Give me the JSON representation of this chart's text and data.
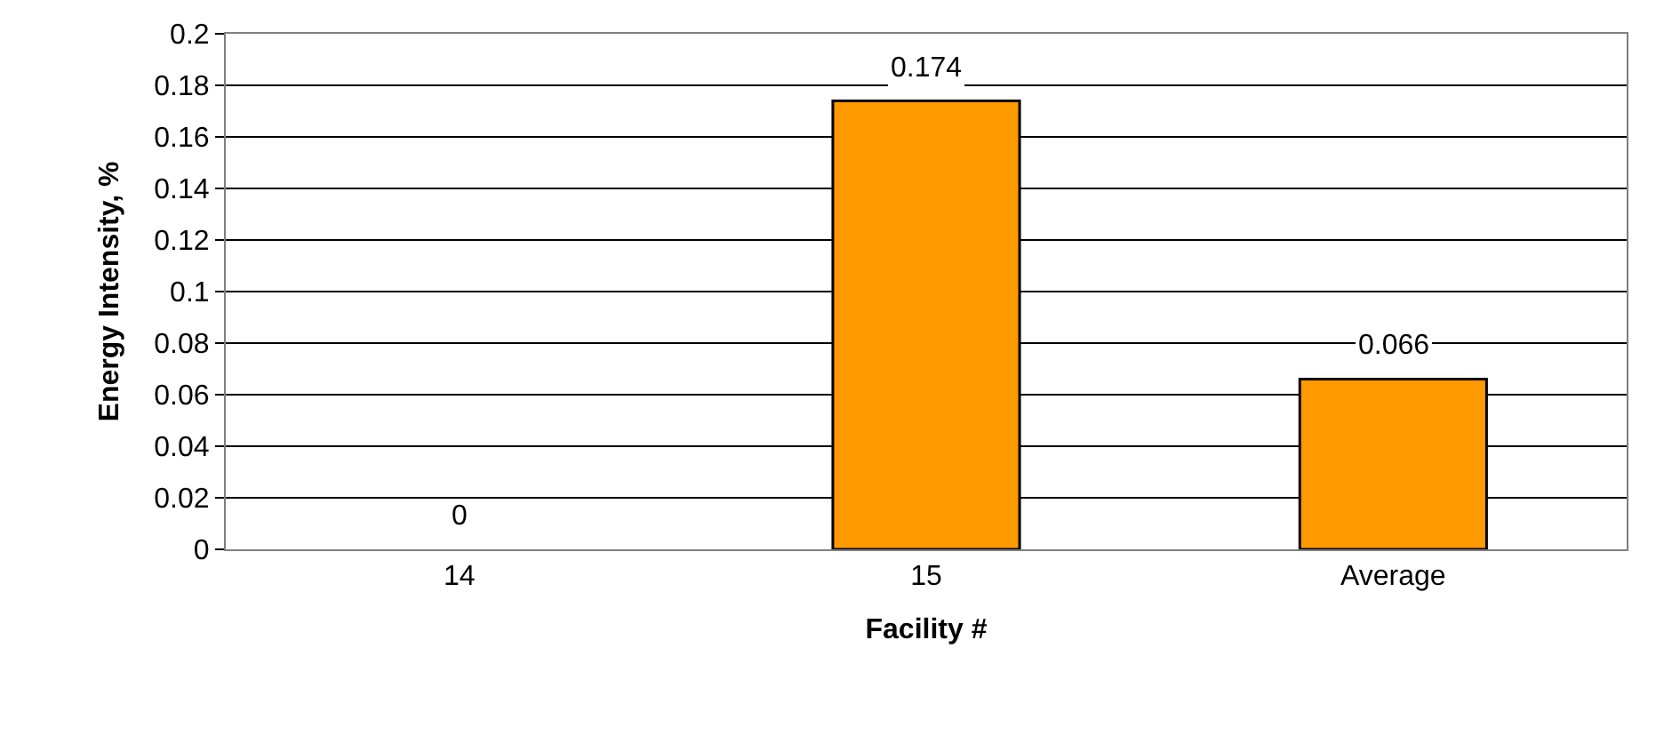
{
  "chart_data": {
    "type": "bar",
    "xlabel": "Facility #",
    "ylabel": "Energy Intensity, %",
    "categories": [
      "14",
      "15",
      "Average"
    ],
    "values": [
      0,
      0.174,
      0.066
    ],
    "color": "#ff9900",
    "ylim": [
      0,
      0.2
    ],
    "yticks": [
      0,
      0.02,
      0.04,
      0.06,
      0.08,
      0.1,
      0.12,
      0.14,
      0.16,
      0.18,
      0.2
    ],
    "grid": "y",
    "data_labels": true
  }
}
